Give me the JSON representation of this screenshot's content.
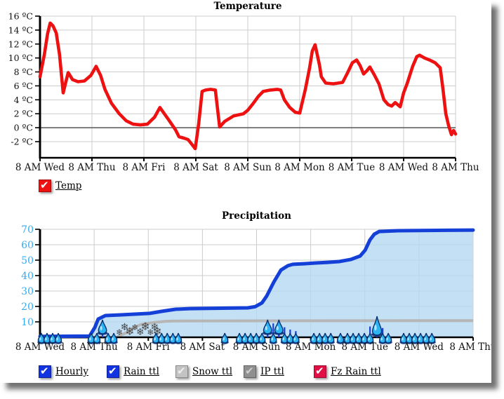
{
  "icons": {
    "check": "✔",
    "snowflake": "❄",
    "raindrop": "raindrop-shape"
  },
  "chart_data": [
    {
      "type": "line",
      "title": "Temperature",
      "y_unit": "ºC",
      "y_ticks": [
        16,
        14,
        12,
        10,
        8,
        6,
        4,
        2,
        0,
        -2
      ],
      "ylim": [
        -4.3,
        16
      ],
      "x_labels": [
        "8 AM Wed",
        "8 AM Thu",
        "8 AM Fri",
        "8 AM Sat",
        "8 AM Sun",
        "8 AM Mon",
        "8 AM Tue",
        "8 AM Wed",
        "8 AM Thu"
      ],
      "xlim_hours": [
        0,
        192
      ],
      "grid": true,
      "zero_line": true,
      "legend_position": "bottom-left",
      "legend": [
        {
          "label": "Temp",
          "box_color": "#ee1111",
          "check_color": "#ffffff",
          "checked": true
        }
      ],
      "series": [
        {
          "name": "Temp",
          "color": "#ee1111",
          "points": [
            [
              0,
              7.3
            ],
            [
              2,
              10.5
            ],
            [
              3.5,
              13.5
            ],
            [
              4.7,
              15.0
            ],
            [
              6,
              14.6
            ],
            [
              7.5,
              13.6
            ],
            [
              9,
              10.5
            ],
            [
              10.7,
              5.0
            ],
            [
              13,
              7.9
            ],
            [
              15,
              6.9
            ],
            [
              17.5,
              6.6
            ],
            [
              20.5,
              6.7
            ],
            [
              23.5,
              7.5
            ],
            [
              25.9,
              8.8
            ],
            [
              28,
              7.5
            ],
            [
              30,
              5.5
            ],
            [
              33,
              3.5
            ],
            [
              36.6,
              2.0
            ],
            [
              39.8,
              1.0
            ],
            [
              43,
              0.5
            ],
            [
              46.4,
              0.4
            ],
            [
              49.6,
              0.5
            ],
            [
              52.9,
              1.5
            ],
            [
              55.4,
              2.9
            ],
            [
              59.3,
              1.2
            ],
            [
              62.6,
              -0.3
            ],
            [
              64.2,
              -1.3
            ],
            [
              66.5,
              -1.5
            ],
            [
              68.4,
              -1.7
            ],
            [
              69.7,
              -2.2
            ],
            [
              71.7,
              -3.0
            ],
            [
              73.3,
              0.5
            ],
            [
              74.9,
              5.2
            ],
            [
              76.5,
              5.4
            ],
            [
              78.8,
              5.5
            ],
            [
              81,
              5.4
            ],
            [
              83,
              0.1
            ],
            [
              85.3,
              0.9
            ],
            [
              89.5,
              1.7
            ],
            [
              94,
              2.0
            ],
            [
              96,
              2.5
            ],
            [
              98.3,
              3.4
            ],
            [
              100.9,
              4.5
            ],
            [
              103.1,
              5.2
            ],
            [
              106.4,
              5.4
            ],
            [
              109.6,
              5.5
            ],
            [
              111.2,
              5.4
            ],
            [
              112.9,
              4.0
            ],
            [
              115.4,
              2.9
            ],
            [
              118,
              2.2
            ],
            [
              120,
              2.1
            ],
            [
              122.6,
              5.5
            ],
            [
              124.5,
              8.5
            ],
            [
              125.8,
              11.0
            ],
            [
              127.1,
              11.9
            ],
            [
              129.1,
              9.0
            ],
            [
              130,
              7.3
            ],
            [
              132,
              6.4
            ],
            [
              135.5,
              6.3
            ],
            [
              139.8,
              6.5
            ],
            [
              142,
              7.8
            ],
            [
              144.3,
              9.3
            ],
            [
              146.3,
              9.7
            ],
            [
              147.9,
              8.9
            ],
            [
              149.5,
              7.7
            ],
            [
              151.1,
              8.2
            ],
            [
              152.4,
              8.7
            ],
            [
              154.4,
              7.6
            ],
            [
              156.6,
              6.3
            ],
            [
              158.9,
              4.0
            ],
            [
              160.9,
              3.3
            ],
            [
              162.5,
              3.1
            ],
            [
              164.1,
              3.6
            ],
            [
              166.4,
              3.0
            ],
            [
              168,
              5.0
            ],
            [
              169.6,
              6.3
            ],
            [
              172.2,
              8.8
            ],
            [
              174.1,
              10.2
            ],
            [
              175.4,
              10.4
            ],
            [
              177.7,
              10.0
            ],
            [
              180,
              9.7
            ],
            [
              182.6,
              9.3
            ],
            [
              184.9,
              8.6
            ],
            [
              186.2,
              5.5
            ],
            [
              187.5,
              2.0
            ],
            [
              188.8,
              0.3
            ],
            [
              190.1,
              -1.0
            ],
            [
              191.1,
              -0.4
            ],
            [
              192,
              -0.9
            ]
          ]
        }
      ]
    },
    {
      "type": "area",
      "title": "Precipitation",
      "y_ticks": [
        70,
        60,
        50,
        40,
        30,
        20,
        10
      ],
      "ylim": [
        0,
        71
      ],
      "y_label_color": "#35abef",
      "x_labels": [
        "8 AM Wed",
        "8 AM Thu",
        "8 AM Fri",
        "8 AM Sat",
        "8 AM Sun",
        "8 AM Mon",
        "8 AM Tue",
        "8 AM Wed",
        "8 AM Thu"
      ],
      "xlim_hours": [
        0,
        192
      ],
      "grid": true,
      "legend_position": "bottom",
      "legend": [
        {
          "label": "Hourly",
          "box_color": "#1433e0",
          "check_color": "#ffffff",
          "checked": true
        },
        {
          "label": "Rain ttl",
          "box_color": "#1433e0",
          "check_color": "#ffffff",
          "checked": true
        },
        {
          "label": "Snow ttl",
          "box_color": "#c3c3c3",
          "check_color": "#eeeeee",
          "checked": true
        },
        {
          "label": "IP ttl",
          "box_color": "#8f8f8f",
          "check_color": "#cfcfcf",
          "checked": true
        },
        {
          "label": "Fz Rain ttl",
          "box_color": "#e01045",
          "check_color": "#ffffff",
          "checked": true
        }
      ],
      "series": [
        {
          "name": "Rain ttl",
          "color": "#1540d8",
          "fill": "#b4d8f2",
          "points": [
            [
              0,
              0.6
            ],
            [
              22,
              0.8
            ],
            [
              24.3,
              6.4
            ],
            [
              25.8,
              11.8
            ],
            [
              29,
              14.1
            ],
            [
              35.2,
              14.5
            ],
            [
              48.6,
              15.5
            ],
            [
              53.9,
              16.8
            ],
            [
              60.1,
              18.2
            ],
            [
              66.3,
              18.6
            ],
            [
              92.1,
              19.1
            ],
            [
              95.3,
              19.8
            ],
            [
              98.4,
              22.3
            ],
            [
              100.5,
              26.8
            ],
            [
              103.7,
              35.9
            ],
            [
              106.8,
              43.6
            ],
            [
              109.9,
              46.4
            ],
            [
              112.1,
              47.3
            ],
            [
              117,
              47.7
            ],
            [
              122.3,
              48.2
            ],
            [
              127.6,
              48.6
            ],
            [
              132.6,
              49.1
            ],
            [
              137.9,
              50.5
            ],
            [
              141.9,
              52.7
            ],
            [
              144.1,
              56.4
            ],
            [
              146.3,
              63.2
            ],
            [
              148.2,
              66.8
            ],
            [
              150.4,
              68.6
            ],
            [
              158.8,
              69.1
            ],
            [
              192,
              69.5
            ]
          ]
        },
        {
          "name": "Snow ttl",
          "color": "#b6b6b6",
          "points": [
            [
              0,
              0
            ],
            [
              34,
              0
            ],
            [
              36,
              1.5
            ],
            [
              39,
              3.5
            ],
            [
              41.4,
              6.0
            ],
            [
              44.5,
              8.2
            ],
            [
              46.7,
              8.8
            ],
            [
              50.7,
              9.7
            ],
            [
              56,
              10.4
            ],
            [
              60,
              10.6
            ],
            [
              192,
              10.8
            ]
          ]
        }
      ],
      "hourly_drops": [
        [
          0.6,
          "s"
        ],
        [
          3.1,
          "s"
        ],
        [
          5.6,
          "s"
        ],
        [
          8.1,
          "s"
        ],
        [
          22.7,
          "s"
        ],
        [
          25.2,
          "s"
        ],
        [
          27.7,
          "l"
        ],
        [
          30.2,
          "s"
        ],
        [
          32.7,
          "s"
        ],
        [
          51.4,
          "s"
        ],
        [
          53.9,
          "s"
        ],
        [
          56.4,
          "s"
        ],
        [
          58.9,
          "s"
        ],
        [
          61.3,
          "s"
        ],
        [
          81.9,
          "s"
        ],
        [
          88.4,
          "s"
        ],
        [
          90.9,
          "s"
        ],
        [
          93.4,
          "s"
        ],
        [
          95.9,
          "s"
        ],
        [
          98.4,
          "s"
        ],
        [
          100.9,
          "l"
        ],
        [
          103.4,
          "s"
        ],
        [
          105.9,
          "l"
        ],
        [
          108.4,
          "s"
        ],
        [
          110.9,
          "s"
        ],
        [
          113.4,
          "s"
        ],
        [
          121.4,
          "s"
        ],
        [
          123.9,
          "s"
        ],
        [
          126.4,
          "s"
        ],
        [
          128.9,
          "s"
        ],
        [
          133.2,
          "s"
        ],
        [
          136.3,
          "s"
        ],
        [
          138.8,
          "s"
        ],
        [
          141.3,
          "s"
        ],
        [
          143.8,
          "s"
        ],
        [
          146.3,
          "s"
        ],
        [
          149.4,
          "x"
        ],
        [
          151.9,
          "s"
        ],
        [
          154.4,
          "s"
        ],
        [
          161.2,
          "s"
        ],
        [
          163.7,
          "s"
        ],
        [
          166.2,
          "s"
        ],
        [
          168.7,
          "s"
        ],
        [
          171.2,
          "s"
        ],
        [
          173.7,
          "s"
        ]
      ],
      "snowflakes_hours": [
        35.2,
        37.5,
        39.8,
        42.1,
        44.4,
        46.7,
        49.0,
        50.8,
        52.0
      ],
      "hourly_bars": [
        [
          103.4,
          9
        ],
        [
          105.9,
          8
        ],
        [
          108.4,
          6.5
        ],
        [
          110.9,
          5
        ],
        [
          113.4,
          4
        ],
        [
          146.3,
          7
        ],
        [
          149.4,
          11
        ],
        [
          151.9,
          6
        ]
      ]
    }
  ]
}
